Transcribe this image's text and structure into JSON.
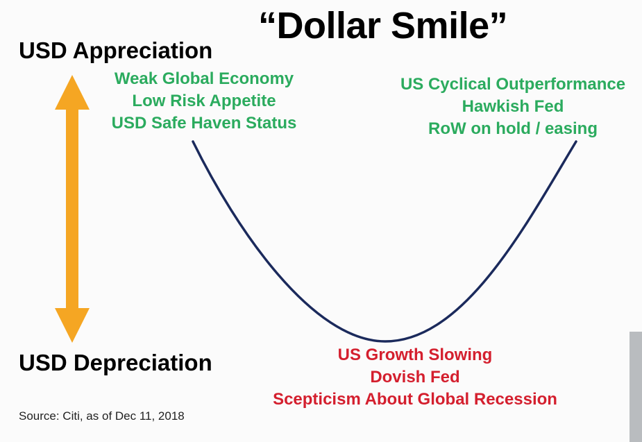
{
  "title": "“Dollar Smile”",
  "axis": {
    "top_label": "USD Appreciation",
    "bottom_label": "USD Depreciation",
    "arrow_color": "#f5a623"
  },
  "left_regime": {
    "lines": [
      "Weak Global Economy",
      "Low Risk Appetite",
      "USD Safe Haven Status"
    ],
    "color": "#2bab5e"
  },
  "right_regime": {
    "lines": [
      "US Cyclical Outperformance",
      "Hawkish Fed",
      "RoW on hold / easing"
    ],
    "color": "#2bab5e"
  },
  "bottom_regime": {
    "lines": [
      "US Growth Slowing",
      "Dovish Fed",
      "Scepticism About Global Recession"
    ],
    "color": "#d41f2e"
  },
  "curve_color": "#1b2a5c",
  "source": "Source: Citi, as of Dec 11, 2018"
}
